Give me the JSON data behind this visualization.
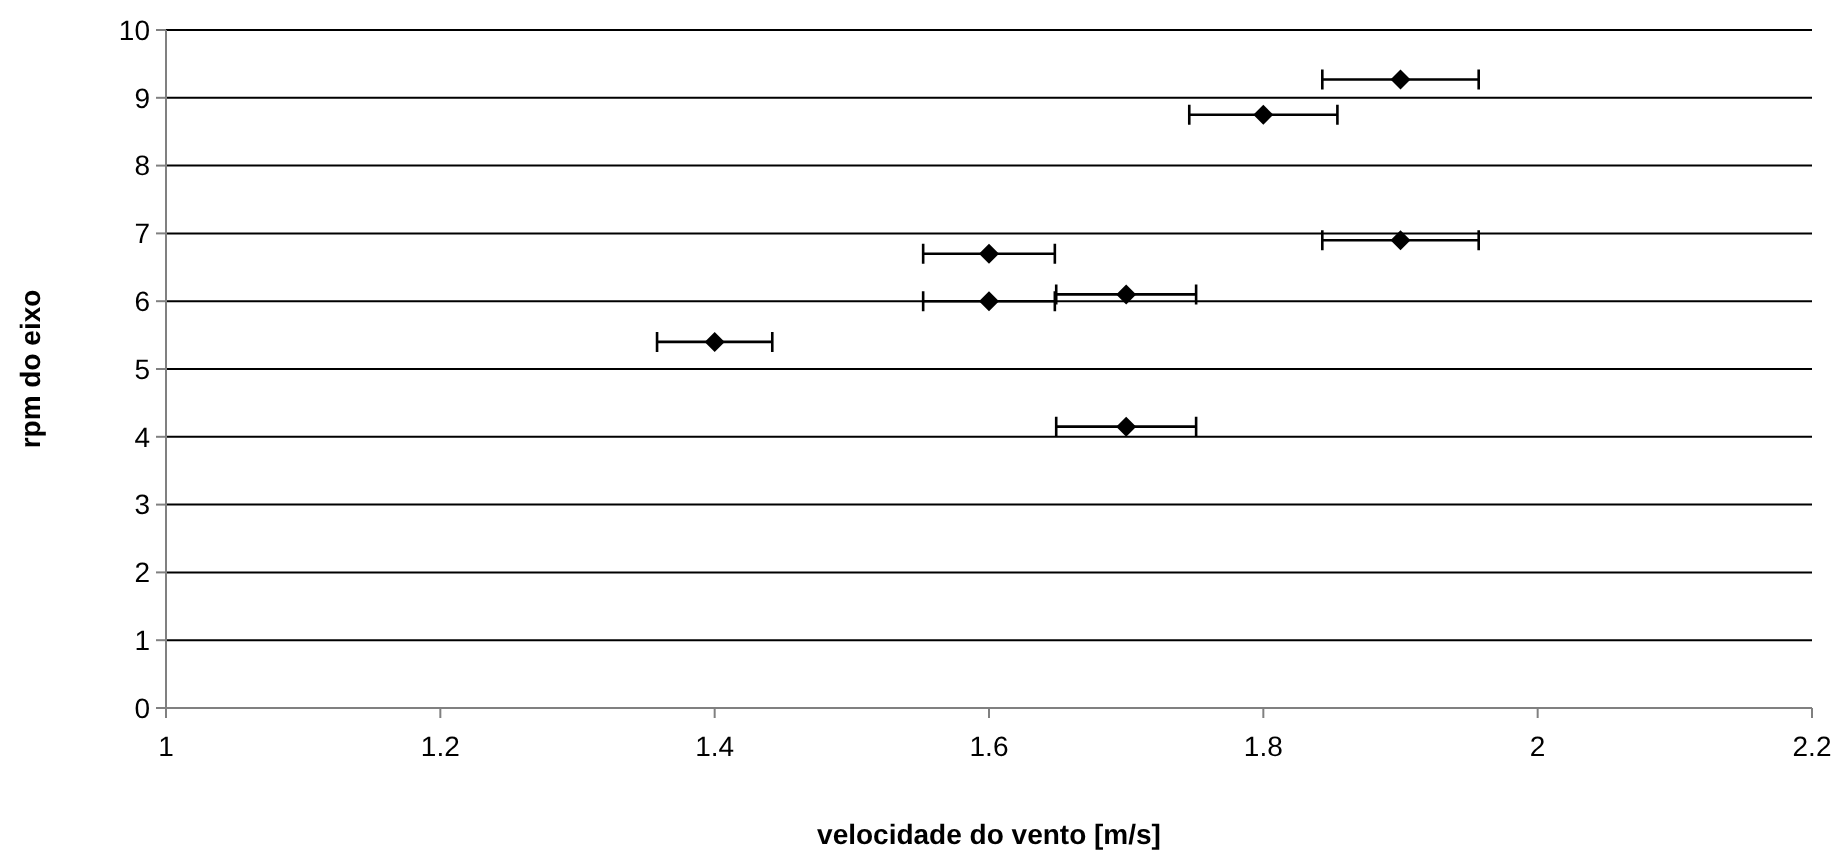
{
  "chart_data": {
    "type": "scatter",
    "xlabel": "velocidade do vento [m/s]",
    "ylabel": "rpm do eixo",
    "x": [
      1.9,
      1.8,
      1.6,
      1.9,
      1.6,
      1.7,
      1.4,
      1.7
    ],
    "series": [
      {
        "color": "#000000",
        "values": [
          9.27,
          8.75,
          6.7,
          6.9,
          6.0,
          6.1,
          5.4,
          4.15
        ],
        "xerrors": [
          0.057,
          0.054,
          0.048,
          0.057,
          0.048,
          0.051,
          0.042,
          0.051
        ]
      }
    ],
    "xlim": [
      1,
      2.2
    ],
    "xticks": [
      1,
      {
        "value": 1.2,
        "label": "1.2"
      },
      {
        "value": 1.4,
        "label": "1.4"
      },
      {
        "value": 1.6,
        "label": "1.6"
      },
      {
        "value": 1.8,
        "label": "1.8"
      },
      2,
      {
        "value": 2.2,
        "label": "2.2"
      }
    ],
    "ylim": [
      0,
      10
    ],
    "yticks": [
      0,
      1,
      2,
      3,
      4,
      5,
      6,
      7,
      8,
      9,
      10
    ],
    "grid": "y",
    "marker": "diamond"
  }
}
